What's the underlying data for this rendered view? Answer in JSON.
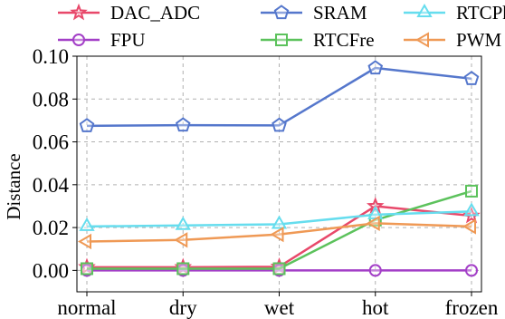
{
  "chart_data": {
    "type": "line",
    "title": "",
    "xlabel": "",
    "ylabel": "Distance",
    "categories": [
      "normal",
      "dry",
      "wet",
      "hot",
      "frozen"
    ],
    "ylim": [
      -0.01,
      0.1
    ],
    "yticks": [
      0.0,
      0.02,
      0.04,
      0.06,
      0.08,
      0.1
    ],
    "ytick_labels": [
      "0.00",
      "0.02",
      "0.04",
      "0.06",
      "0.08",
      "0.10"
    ],
    "grid": true,
    "legend_position": "top",
    "series": [
      {
        "name": "DAC_ADC",
        "color": "#e8486a",
        "marker": "star",
        "values": [
          0.0015,
          0.0015,
          0.0017,
          0.03,
          0.0255
        ]
      },
      {
        "name": "FPU",
        "color": "#a33fc7",
        "marker": "circle",
        "values": [
          0.0,
          0.0,
          0.0,
          0.0,
          0.0
        ]
      },
      {
        "name": "SRAM",
        "color": "#5577cc",
        "marker": "pentagon",
        "values": [
          0.0675,
          0.0678,
          0.0677,
          0.0945,
          0.0895
        ]
      },
      {
        "name": "RTCFre",
        "color": "#5cc25c",
        "marker": "square",
        "values": [
          0.0008,
          0.0008,
          0.0008,
          0.0235,
          0.037
        ]
      },
      {
        "name": "RTCPha",
        "color": "#66ddee",
        "marker": "triangle-up",
        "values": [
          0.0205,
          0.021,
          0.0215,
          0.026,
          0.0275
        ]
      },
      {
        "name": "PWM",
        "color": "#ef9955",
        "marker": "triangle-left",
        "values": [
          0.0135,
          0.0142,
          0.0168,
          0.022,
          0.0205
        ]
      }
    ]
  }
}
